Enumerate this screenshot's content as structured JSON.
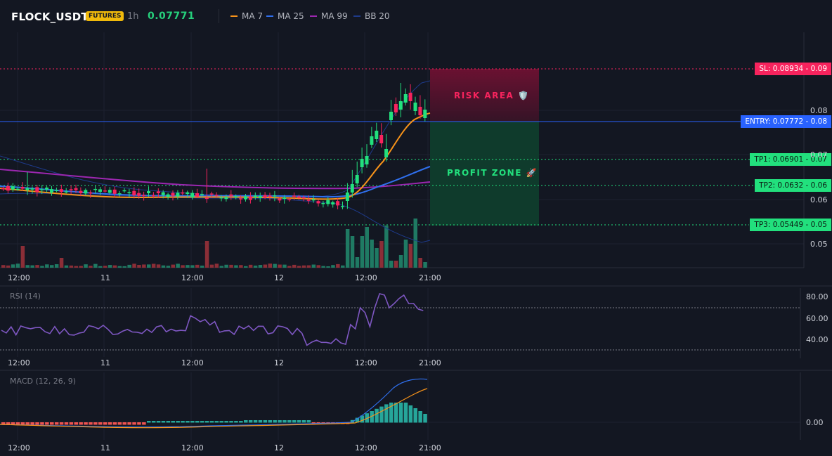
{
  "header": {
    "symbol": "FLOCK_USDT",
    "badge": "FUTURES",
    "timeframe": "1h",
    "last_price": "0.07771",
    "indicators": [
      {
        "name": "MA 7",
        "color": "#f7931a"
      },
      {
        "name": "MA 25",
        "color": "#2f6fed"
      },
      {
        "name": "MA 99",
        "color": "#9c27b0"
      },
      {
        "name": "BB 20",
        "color": "#1e3a8a"
      }
    ]
  },
  "levels": {
    "sl": "SL: 0.08934 - 0.09",
    "entry": "ENTRY: 0.07772 - 0.08",
    "tp1": "TP1: 0.06901 - 0.07",
    "tp2": "TP2: 0.0632 - 0.06",
    "tp3": "TP3: 0.05449 - 0.05"
  },
  "zones": {
    "risk": "RISK AREA 🛡️",
    "profit": "PROFIT ZONE 🚀"
  },
  "x_ticks": [
    "12:00",
    "11",
    "12:00",
    "12",
    "12:00",
    "21:00"
  ],
  "price_axis": [
    "0.08",
    "0.07",
    "0.06",
    "0.05"
  ],
  "rsi": {
    "label": "RSI (14)",
    "ticks": [
      "80.00",
      "60.00",
      "40.00"
    ]
  },
  "macd": {
    "label": "MACD (12, 26, 9)",
    "ticks": [
      "0.00"
    ]
  },
  "colors": {
    "up": "#26a69a",
    "down": "#ef5350",
    "candle_up": "#22e07d",
    "candle_down": "#f7235d"
  }
}
